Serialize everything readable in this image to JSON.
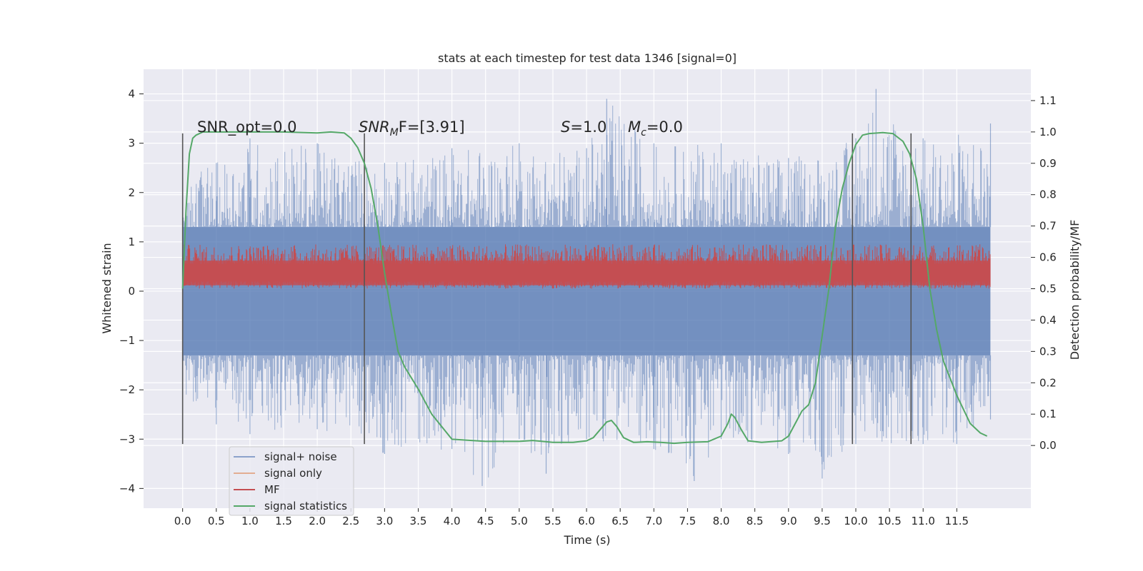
{
  "chart_data": {
    "type": "line",
    "title": "stats at each timestep for test data 1346 [signal=0]",
    "xlabel": "Time (s)",
    "ylabel_left": "Whitened strain",
    "ylabel_right": "Detection probability/MF",
    "xlim": [
      -0.58,
      12.6
    ],
    "ylim_left": [
      -4.4,
      4.5
    ],
    "ylim_right": [
      -0.2,
      1.2
    ],
    "x_ticks": [
      "0.0",
      "0.5",
      "1.0",
      "1.5",
      "2.0",
      "2.5",
      "3.0",
      "3.5",
      "4.0",
      "4.5",
      "5.0",
      "5.5",
      "6.0",
      "6.5",
      "7.0",
      "7.5",
      "8.0",
      "8.5",
      "9.0",
      "9.5",
      "10.0",
      "10.5",
      "11.0",
      "11.5"
    ],
    "y_ticks_left": [
      "−4",
      "−3",
      "−2",
      "−1",
      "0",
      "1",
      "2",
      "3",
      "4"
    ],
    "y_ticks_right": [
      "0.0",
      "0.1",
      "0.2",
      "0.3",
      "0.4",
      "0.5",
      "0.6",
      "0.7",
      "0.8",
      "0.9",
      "1.0",
      "1.1"
    ],
    "grid": true,
    "legend_position": "lower-left",
    "annotations": {
      "snr_opt": "SNR_opt=0.0",
      "snr_mf_main": "SNR",
      "snr_mf_sub": "M",
      "snr_mf_rest": "F=[3.91]",
      "s_sym": "S",
      "s_val": "=1.0",
      "mc_sym": "M",
      "mc_sub": "c",
      "mc_val": "=0.0"
    },
    "vertical_lines_x": [
      0.0,
      2.7,
      9.95,
      10.82
    ],
    "vertical_lines_range_left": [
      -3.1,
      3.2
    ],
    "series": [
      {
        "name": "signal+ noise",
        "color": "#4c72b0",
        "axis": "left",
        "style": "noise band",
        "x_range": [
          0.0,
          12.0
        ],
        "envelope_top": [
          [
            0,
            2.3
          ],
          [
            0.5,
            2.6
          ],
          [
            1,
            3.1
          ],
          [
            2,
            3.0
          ],
          [
            3,
            2.6
          ],
          [
            4,
            2.9
          ],
          [
            5,
            3.0
          ],
          [
            6,
            2.9
          ],
          [
            6.3,
            3.9
          ],
          [
            7,
            3.0
          ],
          [
            8,
            3.0
          ],
          [
            9,
            2.7
          ],
          [
            10,
            3.1
          ],
          [
            10.3,
            4.1
          ],
          [
            11,
            3.1
          ],
          [
            12,
            3.4
          ]
        ],
        "envelope_bottom": [
          [
            0,
            -2.1
          ],
          [
            0.5,
            -2.7
          ],
          [
            1,
            -2.9
          ],
          [
            2,
            -2.8
          ],
          [
            3,
            -3.3
          ],
          [
            4,
            -3.2
          ],
          [
            4.45,
            -3.95
          ],
          [
            5,
            -3.0
          ],
          [
            5.4,
            -3.7
          ],
          [
            6,
            -3.0
          ],
          [
            7,
            -3.2
          ],
          [
            7.6,
            -3.85
          ],
          [
            8,
            -3.0
          ],
          [
            9,
            -3.3
          ],
          [
            9.5,
            -3.8
          ],
          [
            10,
            -3.1
          ],
          [
            11,
            -3.1
          ],
          [
            11.5,
            -3.1
          ],
          [
            12,
            -2.6
          ]
        ],
        "core_band": [
          -1.3,
          1.3
        ]
      },
      {
        "name": "signal only",
        "color": "#dd8452",
        "axis": "left",
        "values": []
      },
      {
        "name": "MF",
        "color": "#c44e52",
        "axis": "left",
        "style": "noise band",
        "x_range": [
          0.0,
          12.0
        ],
        "band": [
          0.05,
          0.95
        ]
      },
      {
        "name": "signal statistics",
        "color": "#55a868",
        "axis": "right",
        "x": [
          0.0,
          0.05,
          0.1,
          0.15,
          0.2,
          0.3,
          0.5,
          1.0,
          1.5,
          2.0,
          2.2,
          2.4,
          2.5,
          2.6,
          2.7,
          2.8,
          2.9,
          3.0,
          3.1,
          3.2,
          3.3,
          3.5,
          3.7,
          4.0,
          4.5,
          5.0,
          5.2,
          5.5,
          5.8,
          6.0,
          6.1,
          6.2,
          6.3,
          6.37,
          6.45,
          6.55,
          6.7,
          6.9,
          7.1,
          7.3,
          7.5,
          7.8,
          8.0,
          8.1,
          8.15,
          8.2,
          8.3,
          8.4,
          8.6,
          8.9,
          9.0,
          9.1,
          9.2,
          9.3,
          9.4,
          9.5,
          9.6,
          9.7,
          9.8,
          9.9,
          10.0,
          10.1,
          10.2,
          10.4,
          10.55,
          10.7,
          10.8,
          10.9,
          11.0,
          11.1,
          11.2,
          11.3,
          11.5,
          11.7,
          11.85,
          11.95
        ],
        "values": [
          0.5,
          0.75,
          0.93,
          0.98,
          0.99,
          1.0,
          1.0,
          1.0,
          1.0,
          0.997,
          1.0,
          0.997,
          0.98,
          0.95,
          0.9,
          0.82,
          0.7,
          0.55,
          0.42,
          0.3,
          0.25,
          0.18,
          0.1,
          0.02,
          0.013,
          0.013,
          0.016,
          0.01,
          0.01,
          0.015,
          0.025,
          0.05,
          0.075,
          0.08,
          0.06,
          0.025,
          0.01,
          0.012,
          0.01,
          0.007,
          0.01,
          0.012,
          0.03,
          0.07,
          0.1,
          0.09,
          0.05,
          0.015,
          0.01,
          0.015,
          0.03,
          0.07,
          0.11,
          0.13,
          0.2,
          0.35,
          0.5,
          0.7,
          0.82,
          0.9,
          0.96,
          0.99,
          0.995,
          0.998,
          0.995,
          0.97,
          0.93,
          0.85,
          0.7,
          0.5,
          0.37,
          0.27,
          0.16,
          0.07,
          0.04,
          0.03
        ]
      }
    ]
  }
}
